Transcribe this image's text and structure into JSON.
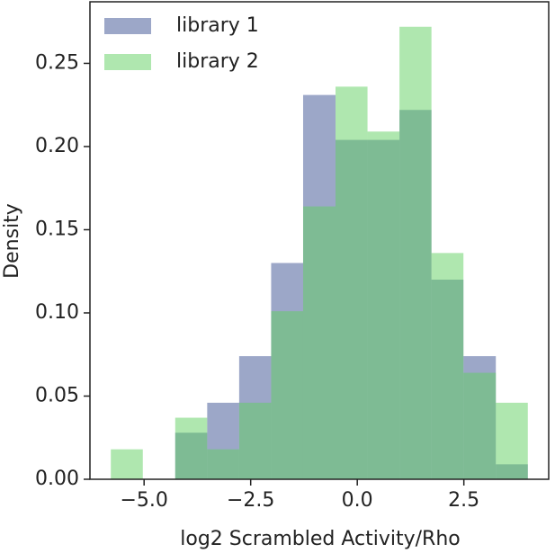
{
  "chart_data": {
    "type": "histogram",
    "xlabel": "log2 Scrambled Activity/Rho",
    "ylabel": "Density",
    "bins": [
      -5.78,
      -5.03,
      -4.27,
      -3.52,
      -2.77,
      -2.02,
      -1.27,
      -0.51,
      0.24,
      0.99,
      1.74,
      2.49,
      3.25,
      4.0
    ],
    "series": [
      {
        "name": "library 1",
        "color": "#4a5e9a",
        "opacity": 0.55,
        "values": [
          0,
          0,
          0.028,
          0.046,
          0.074,
          0.13,
          0.231,
          0.204,
          0.204,
          0.222,
          0.12,
          0.074,
          0.009
        ]
      },
      {
        "name": "library 2",
        "color": "#5fcf5f",
        "opacity": 0.5,
        "values": [
          0.018,
          0,
          0.037,
          0.018,
          0.046,
          0.101,
          0.164,
          0.236,
          0.209,
          0.272,
          0.136,
          0.064,
          0.046
        ]
      }
    ],
    "xlim": [
      -6.27,
      4.49
    ],
    "ylim": [
      0,
      0.287
    ],
    "xticks": [
      {
        "value": -5,
        "label": "−5.0"
      },
      {
        "value": -2.5,
        "label": "−2.5"
      },
      {
        "value": 0,
        "label": "0.0"
      },
      {
        "value": 2.5,
        "label": "2.5"
      }
    ],
    "yticks": [
      {
        "value": 0,
        "label": "0.00"
      },
      {
        "value": 0.05,
        "label": "0.05"
      },
      {
        "value": 0.1,
        "label": "0.10"
      },
      {
        "value": 0.15,
        "label": "0.15"
      },
      {
        "value": 0.2,
        "label": "0.20"
      },
      {
        "value": 0.25,
        "label": "0.25"
      }
    ],
    "legend": "upper left"
  }
}
